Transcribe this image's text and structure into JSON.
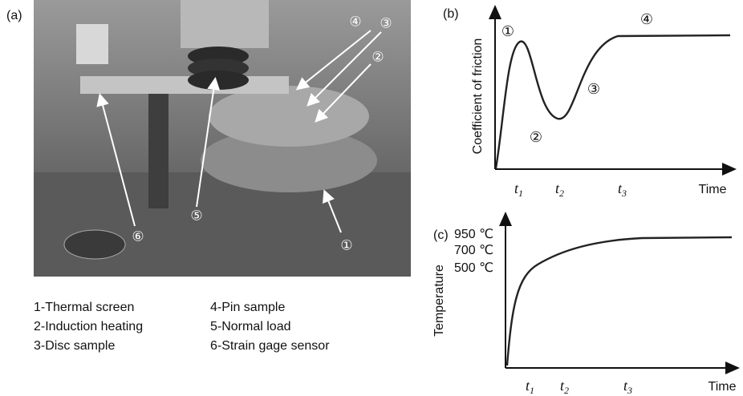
{
  "panel_a": {
    "label": "(a)",
    "photo_markers": [
      "①",
      "②",
      "③",
      "④",
      "⑤",
      "⑥"
    ],
    "legend": [
      [
        "1-Thermal screen",
        "4-Pin sample"
      ],
      [
        "2-Induction heating",
        "5-Normal load"
      ],
      [
        "3-Disc sample",
        "6-Strain gage sensor"
      ]
    ]
  },
  "panel_b": {
    "label": "(b)",
    "y_label": "Coefficient of friction",
    "x_label": "Time",
    "x_ticks": [
      {
        "symbol": "t",
        "index": "1"
      },
      {
        "symbol": "t",
        "index": "2"
      },
      {
        "symbol": "t",
        "index": "3"
      }
    ],
    "stages": [
      "①",
      "②",
      "③",
      "④"
    ]
  },
  "panel_c": {
    "label": "(c)",
    "y_label": "Temperature",
    "x_label": "Time",
    "y_ticks": [
      "950 ℃",
      "700 ℃",
      "500 ℃"
    ],
    "x_ticks": [
      {
        "symbol": "t",
        "index": "1"
      },
      {
        "symbol": "t",
        "index": "2"
      },
      {
        "symbol": "t",
        "index": "3"
      }
    ]
  }
}
